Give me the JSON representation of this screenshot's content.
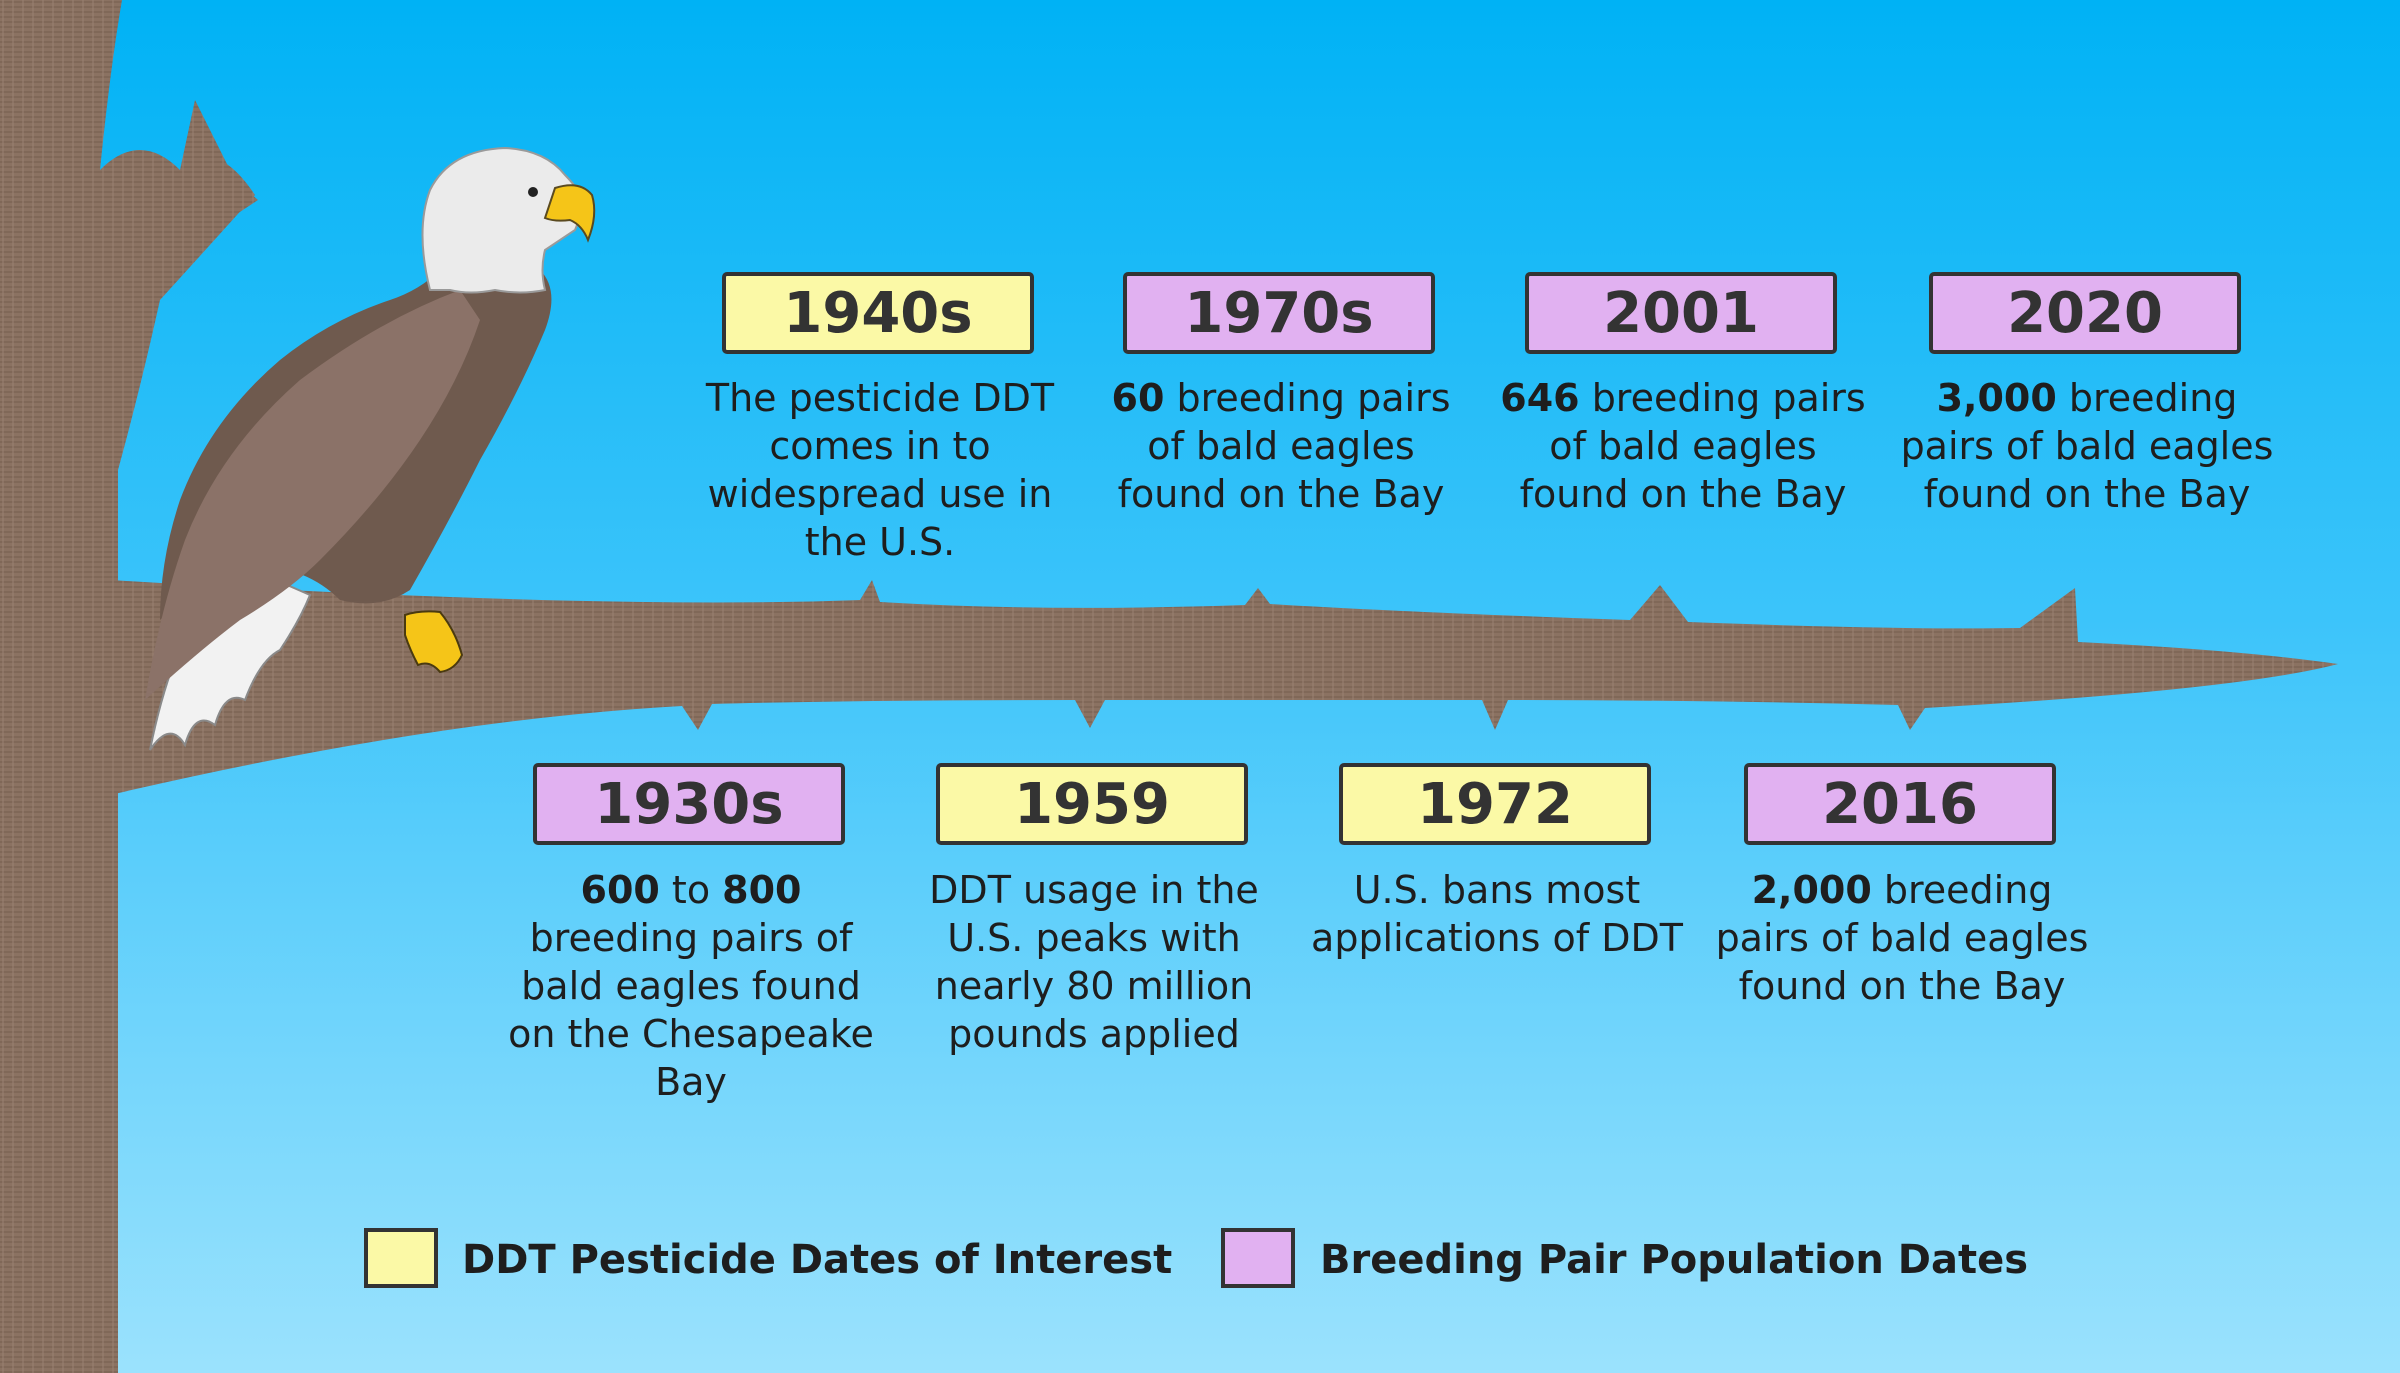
{
  "colors": {
    "sky_top": "#00b2f5",
    "sky_bottom": "#9be2fd",
    "tree_bark": "#8b7262",
    "ddt_box": "#fbf9a6",
    "population_box": "#e1b1f1",
    "outline": "#333333"
  },
  "illustration": {
    "subject": "bald-eagle",
    "perch": "tree-branch"
  },
  "timeline": {
    "top": [
      {
        "year": "1940s",
        "category": "ddt",
        "lead": "",
        "text": "The pesticide DDT comes in to widespread use in the U.S."
      },
      {
        "year": "1970s",
        "category": "population",
        "lead": "60",
        "text": " breeding pairs of bald eagles found on the Bay"
      },
      {
        "year": "2001",
        "category": "population",
        "lead": "646",
        "text": " breeding pairs of bald eagles found on the Bay"
      },
      {
        "year": "2020",
        "category": "population",
        "lead": "3,000",
        "text": " breeding pairs of bald eagles found on the Bay"
      }
    ],
    "bottom": [
      {
        "year": "1930s",
        "category": "population",
        "lead": "600",
        "mid": " to ",
        "lead2": "800",
        "text": " breeding pairs of bald eagles found on the Chesapeake Bay"
      },
      {
        "year": "1959",
        "category": "ddt",
        "lead": "",
        "text": "DDT usage in the U.S. peaks with nearly 80 million pounds applied"
      },
      {
        "year": "1972",
        "category": "ddt",
        "lead": "",
        "text": "U.S. bans most applications of DDT"
      },
      {
        "year": "2016",
        "category": "population",
        "lead": "2,000",
        "text": " breeding pairs of bald eagles found on the Bay"
      }
    ]
  },
  "legend": {
    "ddt_label": "DDT Pesticide Dates of Interest",
    "population_label": "Breeding Pair Population Dates"
  }
}
